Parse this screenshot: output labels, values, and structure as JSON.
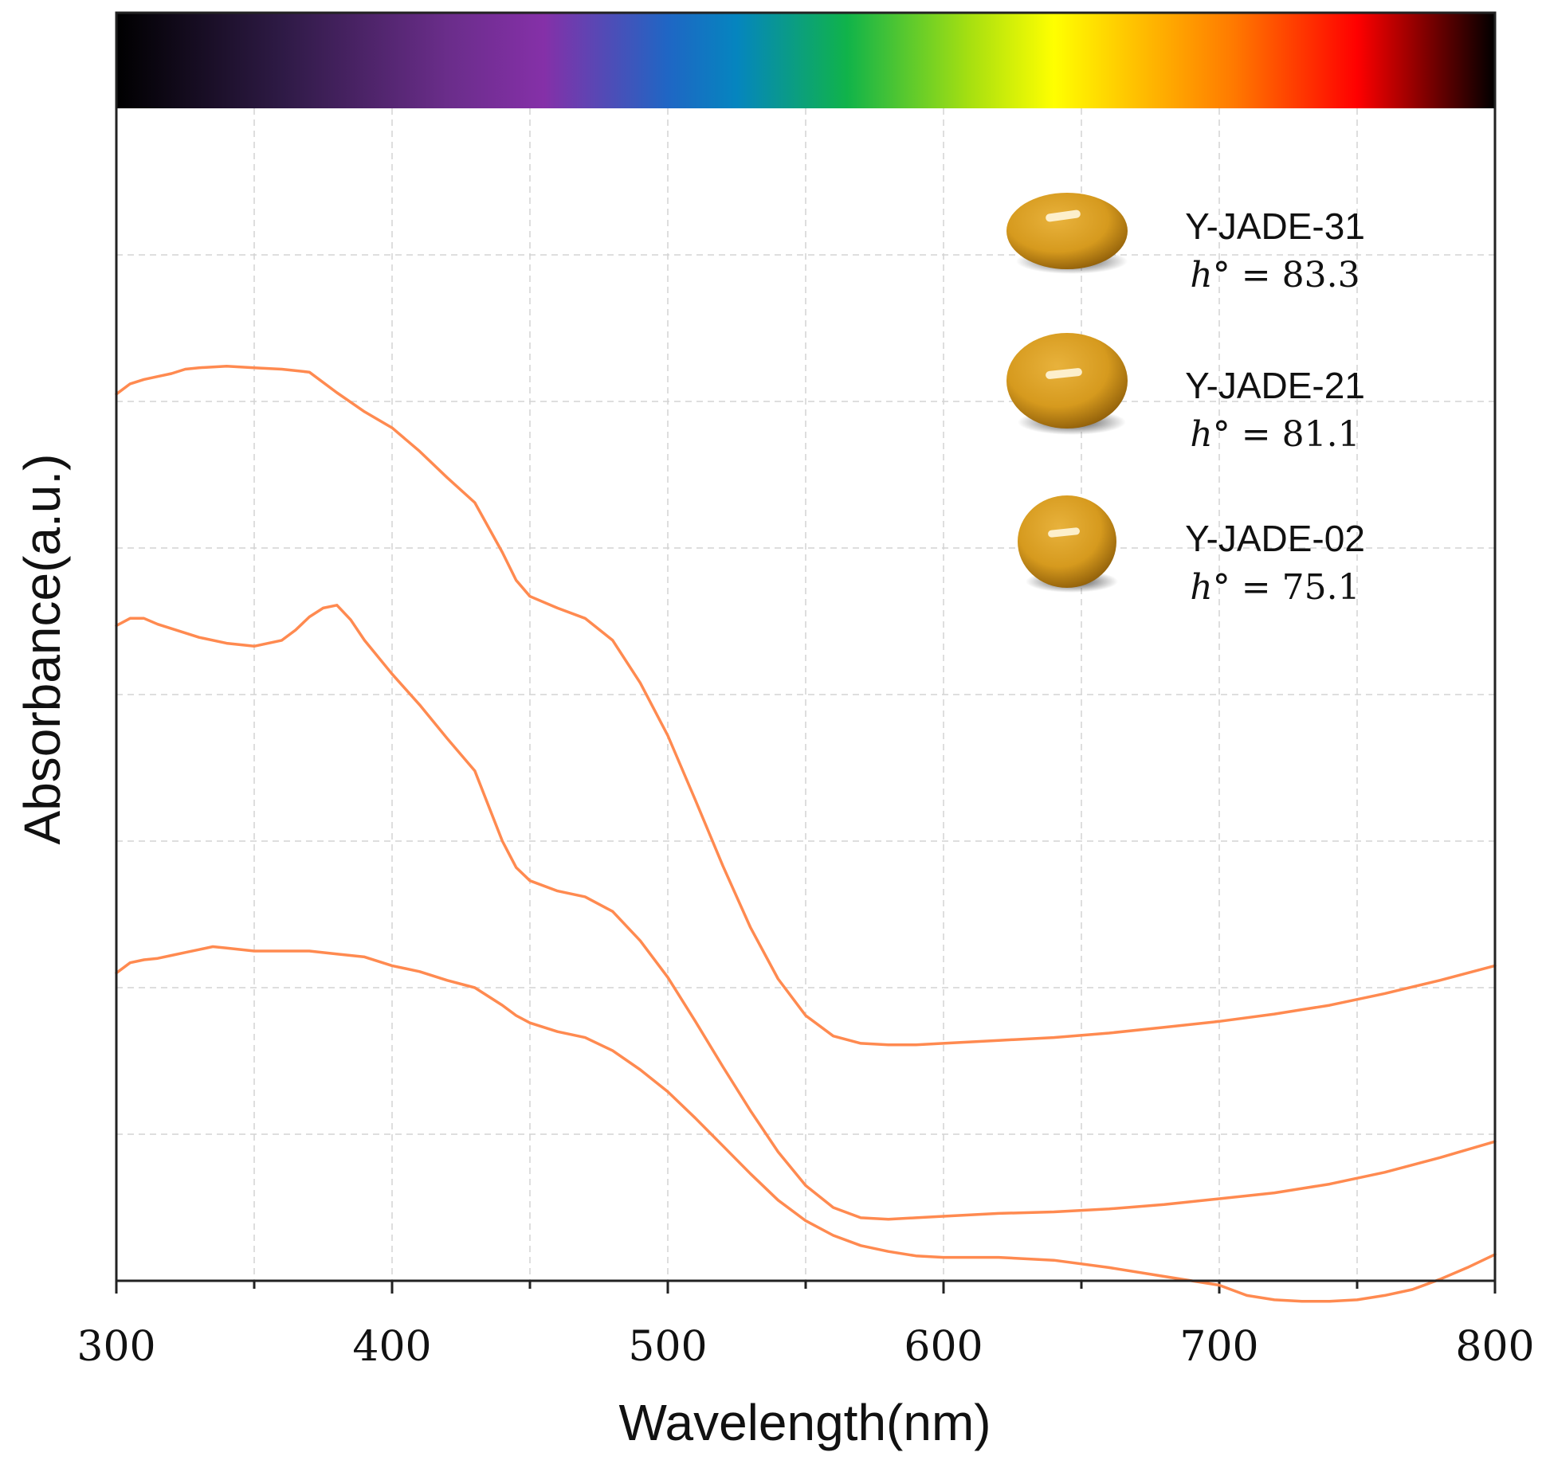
{
  "chart_data": {
    "type": "line",
    "title": "",
    "xlabel": "Wavelength(nm)",
    "ylabel": "Absorbance(a.u.)",
    "xlim": [
      300,
      800
    ],
    "ylim": [
      0,
      8
    ],
    "xticks": [
      "300",
      "400",
      "500",
      "600",
      "700",
      "800"
    ],
    "yticks_labeled": false,
    "grid": true,
    "line_color": "#ff8a50",
    "spectrum_bar": true,
    "series": [
      {
        "name": "Y-JADE-31",
        "hue_value": "83.3",
        "x": [
          300,
          305,
          310,
          315,
          320,
          325,
          330,
          340,
          350,
          360,
          370,
          380,
          390,
          400,
          410,
          420,
          430,
          440,
          445,
          450,
          460,
          470,
          480,
          490,
          500,
          510,
          520,
          530,
          540,
          550,
          560,
          570,
          580,
          590,
          600,
          620,
          640,
          660,
          680,
          700,
          720,
          740,
          760,
          780,
          800
        ],
        "y": [
          6.05,
          6.12,
          6.15,
          6.17,
          6.19,
          6.22,
          6.23,
          6.24,
          6.23,
          6.22,
          6.2,
          6.06,
          5.93,
          5.82,
          5.66,
          5.48,
          5.31,
          4.97,
          4.78,
          4.67,
          4.59,
          4.52,
          4.37,
          4.08,
          3.72,
          3.28,
          2.83,
          2.41,
          2.06,
          1.81,
          1.67,
          1.62,
          1.61,
          1.61,
          1.62,
          1.64,
          1.66,
          1.69,
          1.73,
          1.77,
          1.82,
          1.88,
          1.96,
          2.05,
          2.15
        ]
      },
      {
        "name": "Y-JADE-21",
        "hue_value": "81.1",
        "x": [
          300,
          305,
          310,
          315,
          320,
          330,
          340,
          350,
          360,
          365,
          370,
          375,
          380,
          385,
          390,
          400,
          410,
          420,
          430,
          440,
          445,
          450,
          460,
          470,
          480,
          490,
          500,
          510,
          520,
          530,
          540,
          550,
          560,
          570,
          580,
          590,
          600,
          620,
          640,
          660,
          680,
          700,
          720,
          740,
          760,
          780,
          800
        ],
        "y": [
          4.47,
          4.52,
          4.52,
          4.48,
          4.45,
          4.39,
          4.35,
          4.33,
          4.37,
          4.44,
          4.53,
          4.59,
          4.61,
          4.51,
          4.37,
          4.14,
          3.93,
          3.7,
          3.48,
          3.0,
          2.82,
          2.73,
          2.66,
          2.62,
          2.52,
          2.32,
          2.07,
          1.77,
          1.46,
          1.16,
          0.88,
          0.65,
          0.5,
          0.43,
          0.42,
          0.43,
          0.44,
          0.46,
          0.47,
          0.49,
          0.52,
          0.56,
          0.6,
          0.66,
          0.74,
          0.84,
          0.95
        ]
      },
      {
        "name": "Y-JADE-02",
        "hue_value": "75.1",
        "x": [
          300,
          305,
          310,
          315,
          320,
          325,
          330,
          335,
          340,
          350,
          360,
          370,
          380,
          390,
          400,
          410,
          420,
          430,
          440,
          445,
          450,
          460,
          470,
          480,
          490,
          500,
          510,
          520,
          530,
          540,
          550,
          560,
          570,
          580,
          590,
          600,
          620,
          640,
          660,
          680,
          690,
          700,
          710,
          720,
          730,
          740,
          750,
          760,
          770,
          780,
          790,
          800
        ],
        "y": [
          2.1,
          2.17,
          2.19,
          2.2,
          2.22,
          2.24,
          2.26,
          2.28,
          2.27,
          2.25,
          2.25,
          2.25,
          2.23,
          2.21,
          2.15,
          2.11,
          2.05,
          2.0,
          1.88,
          1.81,
          1.76,
          1.7,
          1.66,
          1.57,
          1.44,
          1.29,
          1.11,
          0.92,
          0.73,
          0.55,
          0.41,
          0.31,
          0.24,
          0.2,
          0.17,
          0.16,
          0.16,
          0.14,
          0.09,
          0.03,
          0.0,
          -0.03,
          -0.1,
          -0.13,
          -0.14,
          -0.14,
          -0.13,
          -0.1,
          -0.06,
          0.01,
          0.09,
          0.18
        ]
      }
    ]
  }
}
